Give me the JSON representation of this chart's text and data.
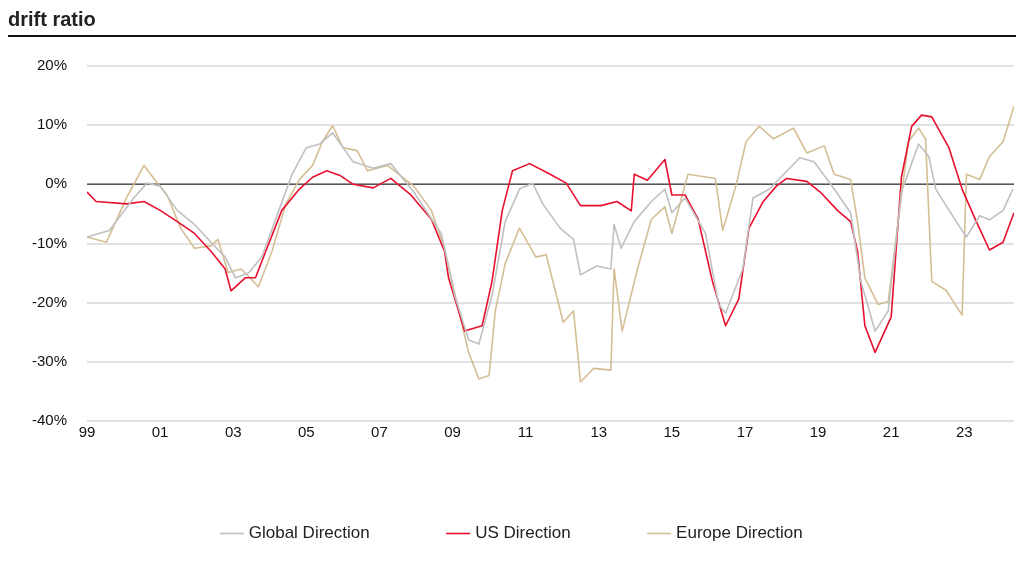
{
  "chart_data": {
    "type": "line",
    "title": "drift ratio",
    "xlim": [
      1999,
      2024.36
    ],
    "xticks": [
      {
        "value": 1999,
        "label": "99"
      },
      {
        "value": 2001,
        "label": "01"
      },
      {
        "value": 2003,
        "label": "03"
      },
      {
        "value": 2005,
        "label": "05"
      },
      {
        "value": 2007,
        "label": "07"
      },
      {
        "value": 2009,
        "label": "09"
      },
      {
        "value": 2011,
        "label": "11"
      },
      {
        "value": 2013,
        "label": "13"
      },
      {
        "value": 2015,
        "label": "15"
      },
      {
        "value": 2017,
        "label": "17"
      },
      {
        "value": 2019,
        "label": "19"
      },
      {
        "value": 2021,
        "label": "21"
      },
      {
        "value": 2023,
        "label": "23"
      }
    ],
    "ylim": [
      -40,
      20
    ],
    "yticks": [
      {
        "value": -40,
        "label": "-40%"
      },
      {
        "value": -30,
        "label": "-30%"
      },
      {
        "value": -20,
        "label": "-20%"
      },
      {
        "value": -10,
        "label": "-10%"
      },
      {
        "value": 0,
        "label": "0%"
      },
      {
        "value": 10,
        "label": "10%"
      },
      {
        "value": 20,
        "label": "20%"
      }
    ],
    "grid": "y",
    "legend": "bottom",
    "marker": "none",
    "line_style": "solid",
    "ref_lines": [
      {
        "axis": "y",
        "value": 0,
        "color": "#555555"
      }
    ],
    "series": [
      {
        "name": "Global Direction",
        "color": "#c0c0c0",
        "x": [
          1999,
          1999.61,
          2000.28,
          2000.64,
          2001.0,
          2001.47,
          2001.94,
          2002.39,
          2002.78,
          2003.06,
          2003.42,
          2003.78,
          2004.25,
          2004.61,
          2005.0,
          2005.36,
          2005.72,
          2006.28,
          2006.83,
          2007.31,
          2007.94,
          2008.69,
          2009.06,
          2009.44,
          2009.72,
          2010.08,
          2010.44,
          2010.83,
          2011.19,
          2011.47,
          2011.94,
          2012.31,
          2012.5,
          2012.94,
          2013.33,
          2013.42,
          2013.61,
          2013.97,
          2014.44,
          2014.81,
          2015.0,
          2015.36,
          2015.92,
          2016.28,
          2016.47,
          2016.94,
          2017.22,
          2017.67,
          2018.06,
          2018.5,
          2018.89,
          2019.44,
          2019.89,
          2020.17,
          2020.56,
          2020.92,
          2021.28,
          2021.75,
          2022.03,
          2022.22,
          2022.78,
          2023.06,
          2023.42,
          2023.69,
          2024.06,
          2024.33
        ],
        "values": [
          -8.9,
          -7.8,
          -2.3,
          0.2,
          -0.3,
          -4.4,
          -6.8,
          -9.8,
          -12.3,
          -15.8,
          -15,
          -12.3,
          -4.4,
          1.7,
          6.2,
          6.8,
          8.7,
          3.8,
          2.7,
          3.5,
          -1.3,
          -8.3,
          -18.8,
          -26.3,
          -27,
          -18.8,
          -6.3,
          -0.8,
          0.2,
          -3.3,
          -7.4,
          -9.3,
          -15.3,
          -13.8,
          -14.3,
          -6.8,
          -10.8,
          -6.3,
          -2.9,
          -0.8,
          -4.8,
          -2.3,
          -8.3,
          -20.3,
          -21.8,
          -14.3,
          -2.3,
          -0.8,
          1.7,
          4.5,
          3.8,
          -0.8,
          -4.8,
          -16.4,
          -24.8,
          -21.4,
          -1.3,
          6.8,
          4.7,
          -0.8,
          -6.3,
          -8.9,
          -5.3,
          -6,
          -4.4,
          -0.8
        ]
      },
      {
        "name": "US Direction",
        "color": "#e8102e",
        "x": [
          1999,
          1999.25,
          2000.08,
          2000.56,
          2001.0,
          2001.47,
          2001.94,
          2002.39,
          2002.78,
          2002.94,
          2003.33,
          2003.61,
          2003.89,
          2004.33,
          2004.81,
          2005.17,
          2005.56,
          2005.92,
          2006.28,
          2006.83,
          2007.31,
          2007.86,
          2008.42,
          2008.78,
          2008.89,
          2009.33,
          2009.81,
          2010.08,
          2010.36,
          2010.64,
          2011.11,
          2011.67,
          2012.11,
          2012.5,
          2013.06,
          2013.5,
          2013.89,
          2013.97,
          2014.33,
          2014.81,
          2015.0,
          2015.36,
          2015.72,
          2016.11,
          2016.47,
          2016.83,
          2017.11,
          2017.5,
          2017.86,
          2018.14,
          2018.69,
          2019.06,
          2019.53,
          2019.89,
          2020.08,
          2020.28,
          2020.56,
          2021.0,
          2021.28,
          2021.56,
          2021.83,
          2022.11,
          2022.58,
          2022.94,
          2023.33,
          2023.69,
          2024.06,
          2024.36
        ],
        "values": [
          -1.3,
          -2.9,
          -3.3,
          -2.9,
          -4.4,
          -6.3,
          -8.3,
          -11.3,
          -14.3,
          -18,
          -15.8,
          -15.8,
          -11.3,
          -4.4,
          -0.8,
          1.2,
          2.3,
          1.5,
          0,
          -0.6,
          1,
          -1.8,
          -5.9,
          -11.3,
          -15.8,
          -24.8,
          -23.9,
          -16.4,
          -4.4,
          2.3,
          3.5,
          1.7,
          0.2,
          -3.6,
          -3.6,
          -2.9,
          -4.5,
          1.7,
          0.7,
          4.2,
          -1.8,
          -1.8,
          -5.9,
          -16.4,
          -23.9,
          -19.4,
          -7.4,
          -2.9,
          -0.3,
          1,
          0.5,
          -1.3,
          -4.4,
          -6.3,
          -11.3,
          -23.9,
          -28.4,
          -22.4,
          1.2,
          9.8,
          11.7,
          11.4,
          6.2,
          -0.8,
          -6.3,
          -11.1,
          -9.8,
          -4.8
        ]
      },
      {
        "name": "Europe Direction",
        "color": "#d4bf94",
        "x": [
          1999,
          1999.53,
          2000.08,
          2000.56,
          2000.83,
          2001.19,
          2001.56,
          2001.94,
          2002.39,
          2002.58,
          2002.86,
          2003.22,
          2003.69,
          2004.06,
          2004.44,
          2004.81,
          2005.17,
          2005.44,
          2005.72,
          2006.0,
          2006.39,
          2006.67,
          2007.22,
          2007.94,
          2008.42,
          2008.78,
          2009.17,
          2009.44,
          2009.72,
          2010.0,
          2010.17,
          2010.44,
          2010.83,
          2011.28,
          2011.56,
          2012.03,
          2012.31,
          2012.5,
          2012.86,
          2013.33,
          2013.42,
          2013.64,
          2014.06,
          2014.44,
          2014.81,
          2015.0,
          2015.44,
          2016.19,
          2016.39,
          2016.75,
          2017.03,
          2017.39,
          2017.78,
          2018.33,
          2018.69,
          2019.17,
          2019.44,
          2019.89,
          2020.08,
          2020.28,
          2020.64,
          2020.92,
          2021.19,
          2021.47,
          2021.75,
          2021.94,
          2022.11,
          2022.5,
          2022.94,
          2023.06,
          2023.42,
          2023.69,
          2024.06,
          2024.36
        ],
        "values": [
          -8.9,
          -9.8,
          -2.3,
          3.2,
          1,
          -1.8,
          -7.4,
          -10.8,
          -10.4,
          -9.3,
          -14.9,
          -14.3,
          -17.3,
          -11.3,
          -3.3,
          0.8,
          3.2,
          7.2,
          9.9,
          6.2,
          5.7,
          2.3,
          3.2,
          -0.3,
          -4.4,
          -10.8,
          -21.4,
          -28.4,
          -32.9,
          -32.3,
          -21.4,
          -13.4,
          -7.4,
          -12.3,
          -11.9,
          -23.3,
          -21.4,
          -33.4,
          -31.1,
          -31.4,
          -14.3,
          -24.8,
          -14.3,
          -5.9,
          -3.8,
          -8.3,
          1.7,
          1,
          -7.8,
          -0.3,
          7.2,
          9.8,
          7.7,
          9.5,
          5.3,
          6.5,
          1.7,
          0.8,
          -6.3,
          -15.8,
          -20.3,
          -19.8,
          -6.3,
          7.2,
          9.5,
          7.7,
          -16.4,
          -17.9,
          -22.1,
          1.7,
          0.8,
          4.7,
          7.2,
          13.2
        ]
      }
    ]
  }
}
